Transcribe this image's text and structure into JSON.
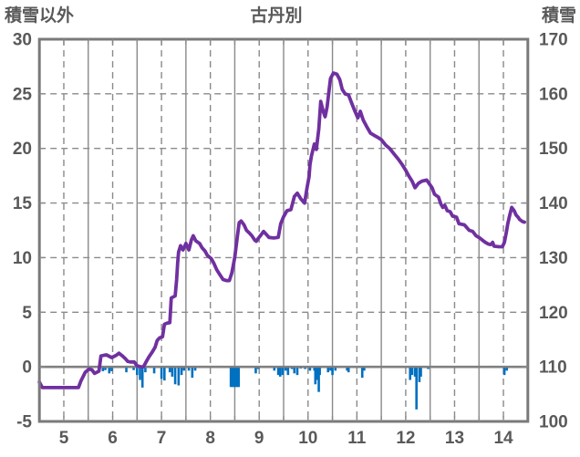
{
  "titles": {
    "left": "積雪以外",
    "center": "古丹別",
    "right": "積雪"
  },
  "colors": {
    "line": "#7030A0",
    "bars": "#0070C0",
    "grid": "#8a8a8a",
    "frame": "#7a7a7a",
    "zero_line": "#808080",
    "text": "#595959",
    "background": "#ffffff"
  },
  "chart_data": {
    "type": "line",
    "title": "古丹別",
    "x_axis": {
      "range": [
        4.5,
        14.5
      ],
      "tick_labels": [
        5,
        6,
        7,
        8,
        9,
        10,
        11,
        12,
        13,
        14
      ],
      "minor_step": 0.5
    },
    "y_axis_left": {
      "title": "積雪以外",
      "range": [
        -5,
        30
      ],
      "tick_labels": [
        30,
        25,
        20,
        15,
        10,
        5,
        0,
        -5
      ]
    },
    "y_axis_right": {
      "title": "積雪",
      "range": [
        100,
        170
      ],
      "tick_labels": [
        170,
        160,
        150,
        140,
        130,
        120,
        110,
        100
      ]
    },
    "legend": "none",
    "grid": "on",
    "series": [
      {
        "name": "積雪",
        "type": "line",
        "axis": "right",
        "color": "#7030A0",
        "points": [
          [
            4.5,
            107.2
          ],
          [
            4.56,
            106.2
          ],
          [
            5.3,
            106.2
          ],
          [
            5.35,
            107.4
          ],
          [
            5.44,
            109
          ],
          [
            5.52,
            109.6
          ],
          [
            5.58,
            109.4
          ],
          [
            5.63,
            108.8
          ],
          [
            5.72,
            109.2
          ],
          [
            5.76,
            112
          ],
          [
            5.87,
            112.2
          ],
          [
            5.98,
            111.7
          ],
          [
            6.07,
            112.1
          ],
          [
            6.13,
            112.5
          ],
          [
            6.2,
            112
          ],
          [
            6.26,
            111.5
          ],
          [
            6.31,
            111
          ],
          [
            6.36,
            110.9
          ],
          [
            6.44,
            110.9
          ],
          [
            6.5,
            110.2
          ],
          [
            6.57,
            110
          ],
          [
            6.63,
            110
          ],
          [
            6.69,
            111
          ],
          [
            6.74,
            111.8
          ],
          [
            6.81,
            112.7
          ],
          [
            6.87,
            113.6
          ],
          [
            6.91,
            114.8
          ],
          [
            6.96,
            115.3
          ],
          [
            7.02,
            115.5
          ],
          [
            7.06,
            117.8
          ],
          [
            7.11,
            118
          ],
          [
            7.17,
            118.1
          ],
          [
            7.2,
            122.6
          ],
          [
            7.24,
            122.8
          ],
          [
            7.28,
            123
          ],
          [
            7.31,
            126
          ],
          [
            7.33,
            129
          ],
          [
            7.35,
            131
          ],
          [
            7.39,
            132.2
          ],
          [
            7.44,
            131.4
          ],
          [
            7.5,
            132.6
          ],
          [
            7.56,
            131.4
          ],
          [
            7.61,
            133.2
          ],
          [
            7.65,
            134
          ],
          [
            7.7,
            133.1
          ],
          [
            7.78,
            132.6
          ],
          [
            7.83,
            131.8
          ],
          [
            7.89,
            131.2
          ],
          [
            7.94,
            130.4
          ],
          [
            8.02,
            129.8
          ],
          [
            8.07,
            129
          ],
          [
            8.13,
            127.8
          ],
          [
            8.2,
            126.8
          ],
          [
            8.26,
            126
          ],
          [
            8.33,
            125.8
          ],
          [
            8.39,
            125.8
          ],
          [
            8.44,
            127.2
          ],
          [
            8.5,
            130
          ],
          [
            8.56,
            134.4
          ],
          [
            8.59,
            136.4
          ],
          [
            8.63,
            136.7
          ],
          [
            8.69,
            136
          ],
          [
            8.74,
            135
          ],
          [
            8.8,
            134.5
          ],
          [
            8.85,
            134
          ],
          [
            8.91,
            133.2
          ],
          [
            8.94,
            133
          ],
          [
            8.98,
            133.5
          ],
          [
            9.04,
            134.2
          ],
          [
            9.09,
            134.8
          ],
          [
            9.15,
            134.2
          ],
          [
            9.2,
            133.7
          ],
          [
            9.3,
            133.6
          ],
          [
            9.39,
            133.7
          ],
          [
            9.44,
            136.2
          ],
          [
            9.5,
            137.5
          ],
          [
            9.57,
            138.6
          ],
          [
            9.65,
            138.8
          ],
          [
            9.72,
            141.2
          ],
          [
            9.78,
            141.8
          ],
          [
            9.85,
            140.8
          ],
          [
            9.93,
            140
          ],
          [
            9.98,
            142.8
          ],
          [
            10.02,
            144.8
          ],
          [
            10.04,
            147
          ],
          [
            10.07,
            148.6
          ],
          [
            10.13,
            150.8
          ],
          [
            10.17,
            149.8
          ],
          [
            10.22,
            153.6
          ],
          [
            10.26,
            158.6
          ],
          [
            10.31,
            156.8
          ],
          [
            10.35,
            155.8
          ],
          [
            10.39,
            157.6
          ],
          [
            10.43,
            160.6
          ],
          [
            10.46,
            162.8
          ],
          [
            10.52,
            163.8
          ],
          [
            10.59,
            163.6
          ],
          [
            10.65,
            162.6
          ],
          [
            10.7,
            160.8
          ],
          [
            10.76,
            160
          ],
          [
            10.83,
            159.8
          ],
          [
            10.89,
            158.4
          ],
          [
            10.96,
            156.8
          ],
          [
            11.02,
            155.6
          ],
          [
            11.07,
            156.8
          ],
          [
            11.13,
            155.2
          ],
          [
            11.2,
            154
          ],
          [
            11.28,
            152.8
          ],
          [
            11.35,
            152.4
          ],
          [
            11.43,
            152
          ],
          [
            11.5,
            151.6
          ],
          [
            11.59,
            150.6
          ],
          [
            11.67,
            150
          ],
          [
            11.76,
            149
          ],
          [
            11.85,
            148
          ],
          [
            11.93,
            147
          ],
          [
            12,
            146
          ],
          [
            12.06,
            145
          ],
          [
            12.13,
            144
          ],
          [
            12.19,
            142.8
          ],
          [
            12.26,
            143.6
          ],
          [
            12.33,
            144
          ],
          [
            12.43,
            144.2
          ],
          [
            12.54,
            142.8
          ],
          [
            12.59,
            141.6
          ],
          [
            12.67,
            141.1
          ],
          [
            12.72,
            139.8
          ],
          [
            12.76,
            139.2
          ],
          [
            12.8,
            139.6
          ],
          [
            12.85,
            138.6
          ],
          [
            12.91,
            138.4
          ],
          [
            12.96,
            137.6
          ],
          [
            13.04,
            137.4
          ],
          [
            13.09,
            136.2
          ],
          [
            13.2,
            136
          ],
          [
            13.3,
            135
          ],
          [
            13.37,
            134.8
          ],
          [
            13.44,
            134
          ],
          [
            13.5,
            133.7
          ],
          [
            13.57,
            133.2
          ],
          [
            13.63,
            132.8
          ],
          [
            13.69,
            132.5
          ],
          [
            13.74,
            132.4
          ],
          [
            13.78,
            132.8
          ],
          [
            13.81,
            132.1
          ],
          [
            13.91,
            132
          ],
          [
            13.98,
            132
          ],
          [
            14.02,
            132.8
          ],
          [
            14.06,
            134.6
          ],
          [
            14.09,
            136.2
          ],
          [
            14.13,
            137.8
          ],
          [
            14.17,
            139.2
          ],
          [
            14.22,
            138.6
          ],
          [
            14.26,
            137.8
          ],
          [
            14.3,
            137.4
          ],
          [
            14.33,
            137
          ],
          [
            14.39,
            136.6
          ],
          [
            14.43,
            136.5
          ]
        ]
      },
      {
        "name": "積雪以外",
        "type": "bar",
        "axis": "left",
        "color": "#0070C0",
        "points": [
          [
            5.8,
            -0.4
          ],
          [
            5.85,
            -0.3
          ],
          [
            5.93,
            -0.6
          ],
          [
            5.98,
            -0.4
          ],
          [
            6.28,
            -0.5
          ],
          [
            6.43,
            -0.3
          ],
          [
            6.5,
            -0.75
          ],
          [
            6.56,
            -1.2
          ],
          [
            6.61,
            -1.9
          ],
          [
            6.67,
            -0.5
          ],
          [
            6.85,
            -0.6
          ],
          [
            7.0,
            -1.1
          ],
          [
            7.06,
            -1.25
          ],
          [
            7.17,
            -0.5
          ],
          [
            7.22,
            -0.9
          ],
          [
            7.28,
            -1.6
          ],
          [
            7.35,
            -1.7
          ],
          [
            7.41,
            -0.75
          ],
          [
            7.46,
            -0.35
          ],
          [
            7.56,
            -0.35
          ],
          [
            7.63,
            -1.0
          ],
          [
            7.69,
            -0.35
          ],
          [
            8.42,
            -1.85
          ],
          [
            8.46,
            -1.85
          ],
          [
            8.5,
            -1.85
          ],
          [
            8.54,
            -1.85
          ],
          [
            8.58,
            -1.85
          ],
          [
            8.93,
            -0.6
          ],
          [
            8.98,
            -0.2
          ],
          [
            9.31,
            -0.35
          ],
          [
            9.39,
            -0.75
          ],
          [
            9.43,
            -0.9
          ],
          [
            9.48,
            -0.75
          ],
          [
            9.54,
            -0.35
          ],
          [
            9.59,
            -0.75
          ],
          [
            9.67,
            -0.2
          ],
          [
            9.72,
            -0.6
          ],
          [
            9.78,
            -0.75
          ],
          [
            9.85,
            -0.15
          ],
          [
            9.94,
            -0.2
          ],
          [
            10.04,
            -0.35
          ],
          [
            10.13,
            -0.35
          ],
          [
            10.15,
            -1.6
          ],
          [
            10.19,
            -1.2
          ],
          [
            10.22,
            -2.3
          ],
          [
            10.24,
            -0.75
          ],
          [
            10.41,
            -0.5
          ],
          [
            10.46,
            -0.35
          ],
          [
            10.5,
            -0.75
          ],
          [
            10.56,
            -0.35
          ],
          [
            10.8,
            -0.35
          ],
          [
            10.83,
            -0.5
          ],
          [
            11.11,
            -1.0
          ],
          [
            11.15,
            -0.35
          ],
          [
            12.09,
            -1.2
          ],
          [
            12.13,
            -0.75
          ],
          [
            12.19,
            -0.9
          ],
          [
            12.22,
            -3.9
          ],
          [
            12.28,
            -1.4
          ],
          [
            12.31,
            -0.9
          ],
          [
            12.46,
            -0.2
          ],
          [
            14.02,
            -0.75
          ],
          [
            14.07,
            -0.35
          ]
        ]
      }
    ]
  }
}
